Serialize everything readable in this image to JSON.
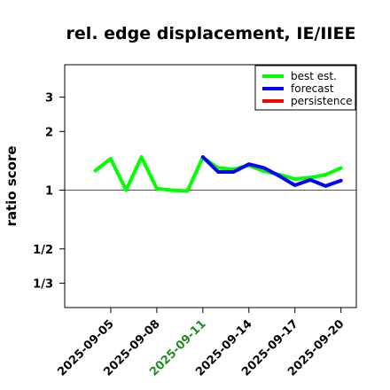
{
  "chart_data": {
    "type": "line",
    "title": "rel. edge displacement, IE/IIEE",
    "ylabel": "ratio score",
    "xlabel": "",
    "x_ticks": [
      "2025-09-05",
      "2025-09-08",
      "2025-09-11",
      "2025-09-14",
      "2025-09-17",
      "2025-09-20"
    ],
    "x_tick_colors": [
      "#000000",
      "#000000",
      "#228B22",
      "#000000",
      "#000000",
      "#000000"
    ],
    "x_range": [
      "2025-09-02",
      "2025-09-21"
    ],
    "y_scale": "log",
    "y_ticks": [
      {
        "label": "3",
        "value": 3
      },
      {
        "label": "2",
        "value": 2
      },
      {
        "label": "1",
        "value": 1
      },
      {
        "label": "1/2",
        "value": 0.5
      },
      {
        "label": "1/3",
        "value": 0.3333
      }
    ],
    "ylim": [
      0.25,
      4.4
    ],
    "reference_line": 1,
    "legend_position": "top-right",
    "series": [
      {
        "name": "best est.",
        "color": "#00ff00",
        "x": [
          "2025-09-04",
          "2025-09-05",
          "2025-09-06",
          "2025-09-07",
          "2025-09-08",
          "2025-09-09",
          "2025-09-10",
          "2025-09-11",
          "2025-09-12",
          "2025-09-13",
          "2025-09-14",
          "2025-09-15",
          "2025-09-16",
          "2025-09-17",
          "2025-09-18",
          "2025-09-19",
          "2025-09-20"
        ],
        "y": [
          1.26,
          1.45,
          1.0,
          1.48,
          1.02,
          1.0,
          0.99,
          1.47,
          1.3,
          1.28,
          1.34,
          1.25,
          1.2,
          1.14,
          1.16,
          1.2,
          1.3
        ]
      },
      {
        "name": "forecast",
        "color": "#0000ff",
        "x": [
          "2025-09-11",
          "2025-09-12",
          "2025-09-13",
          "2025-09-14",
          "2025-09-15",
          "2025-09-16",
          "2025-09-17",
          "2025-09-18",
          "2025-09-19",
          "2025-09-20"
        ],
        "y": [
          1.48,
          1.24,
          1.24,
          1.36,
          1.3,
          1.18,
          1.06,
          1.13,
          1.05,
          1.12
        ]
      },
      {
        "name": "persistence",
        "color": "#ff0000",
        "x": [],
        "y": []
      }
    ]
  }
}
